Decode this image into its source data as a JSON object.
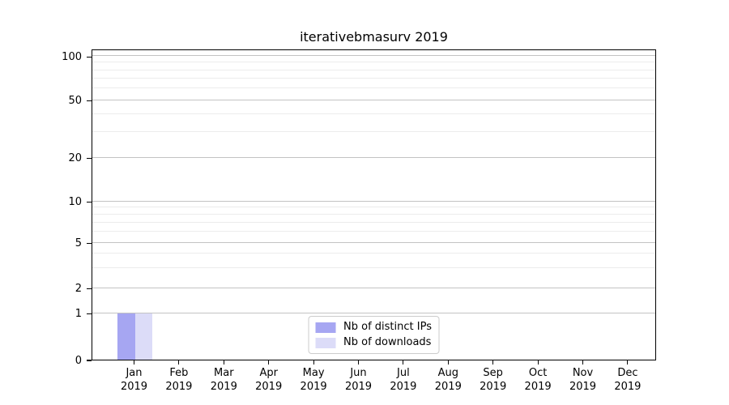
{
  "title": "iterativebmasurv 2019",
  "colors": {
    "distinct_ips_bar": "#a6a6f2",
    "downloads_bar": "#dcdcf8",
    "major_grid": "#c3c3c3",
    "minor_grid": "#ececec",
    "axis": "#000000",
    "legend_border": "#cccccc"
  },
  "chart_data": {
    "type": "bar",
    "title": "iterativebmasurv 2019",
    "xlabel": "",
    "ylabel": "",
    "categories": [
      {
        "month": "Jan",
        "year": "2019"
      },
      {
        "month": "Feb",
        "year": "2019"
      },
      {
        "month": "Mar",
        "year": "2019"
      },
      {
        "month": "Apr",
        "year": "2019"
      },
      {
        "month": "May",
        "year": "2019"
      },
      {
        "month": "Jun",
        "year": "2019"
      },
      {
        "month": "Jul",
        "year": "2019"
      },
      {
        "month": "Aug",
        "year": "2019"
      },
      {
        "month": "Sep",
        "year": "2019"
      },
      {
        "month": "Oct",
        "year": "2019"
      },
      {
        "month": "Nov",
        "year": "2019"
      },
      {
        "month": "Dec",
        "year": "2019"
      }
    ],
    "series": [
      {
        "name": "Nb of distinct IPs",
        "color": "#a6a6f2",
        "values": [
          1,
          0,
          0,
          0,
          0,
          0,
          0,
          0,
          0,
          0,
          0,
          0
        ]
      },
      {
        "name": "Nb of downloads",
        "color": "#dcdcf8",
        "values": [
          1,
          0,
          0,
          0,
          0,
          0,
          0,
          0,
          0,
          0,
          0,
          0
        ]
      }
    ],
    "y_axis": {
      "scale": "symlog-like",
      "major_ticks": [
        0,
        1,
        2,
        5,
        10,
        20,
        50,
        100
      ],
      "minor_ticks": [
        3,
        4,
        6,
        7,
        8,
        9,
        30,
        40,
        60,
        70,
        80,
        90
      ]
    },
    "grid": "horizontal",
    "legend": {
      "location": "lower center",
      "entries": [
        "Nb of distinct IPs",
        "Nb of downloads"
      ]
    }
  }
}
